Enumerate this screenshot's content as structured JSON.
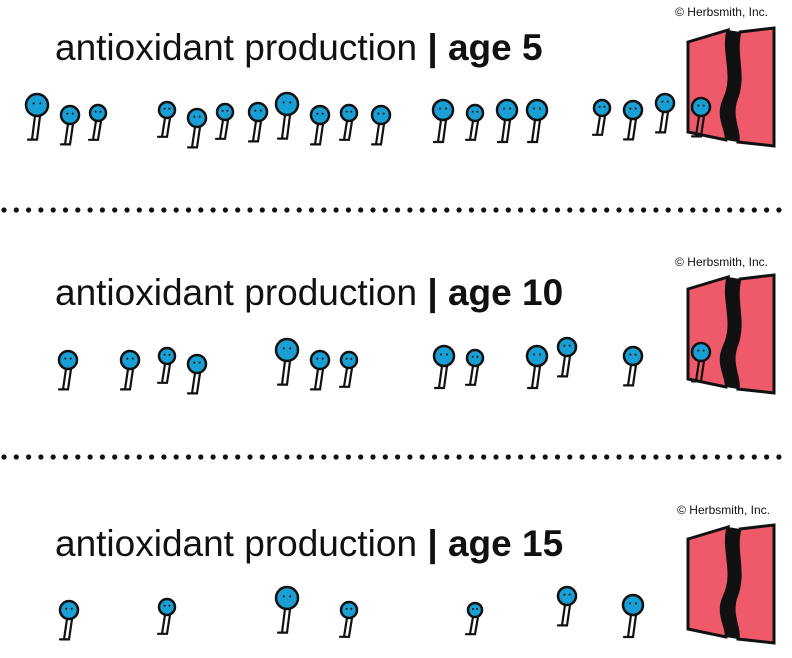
{
  "panels": [
    {
      "copyright": "© Herbsmith, Inc.",
      "label": "antioxidant production",
      "separator": "|",
      "age": "age 5"
    },
    {
      "copyright": "© Herbsmith, Inc.",
      "label": "antioxidant production",
      "separator": "|",
      "age": "age 10"
    },
    {
      "copyright": "© Herbsmith, Inc.",
      "label": "antioxidant production",
      "separator": "|",
      "age": "age 15"
    }
  ]
}
